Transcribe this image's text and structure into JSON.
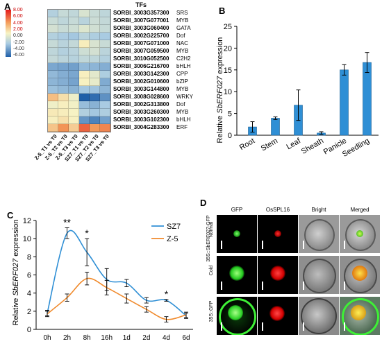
{
  "panels": {
    "A": "A",
    "B": "B",
    "C": "C",
    "D": "D"
  },
  "heatmap": {
    "tfs_header": "TFs",
    "scale_ticks": [
      "8.00",
      "6.00",
      "4.00",
      "2.00",
      "0.00",
      "-2.00",
      "-4.00",
      "-6.00"
    ],
    "columns": [
      "Z-5_T1 vs T0",
      "Z-5_T2 vs T0",
      "Z-5_T3 vs T0",
      "SZ7_T1 vs T0",
      "SZ7_T2 vs T0",
      "SZ7_T3 vs T0"
    ],
    "rows": [
      {
        "gene": "SORBI_3003G357300",
        "tf": "SRS",
        "values": [
          -2.6,
          -1.9,
          -2.1,
          -1.2,
          -1.8,
          -2.2
        ]
      },
      {
        "gene": "SORBI_3007G077001",
        "tf": "MYB",
        "values": [
          -1.8,
          -2.2,
          -1.9,
          -2.4,
          -1.7,
          -2.0
        ]
      },
      {
        "gene": "SORBI_3003G060400",
        "tf": "GATA",
        "values": [
          -1.4,
          -1.8,
          -1.6,
          -1.0,
          -1.5,
          -1.9
        ]
      },
      {
        "gene": "SORBI_3002G225700",
        "tf": "Dof",
        "values": [
          -2.6,
          -2.9,
          -3.1,
          -2.4,
          -2.8,
          -3.0
        ]
      },
      {
        "gene": "SORBI_3007G071000",
        "tf": "NAC",
        "values": [
          -1.9,
          -2.4,
          -2.0,
          0.3,
          -1.2,
          -1.8
        ]
      },
      {
        "gene": "SORBI_3007G059500",
        "tf": "MYB",
        "values": [
          -2.2,
          -2.6,
          -2.4,
          -1.6,
          -1.4,
          -2.3
        ]
      },
      {
        "gene": "SORBI_3010G052500",
        "tf": "C2H2",
        "values": [
          -2.0,
          -2.3,
          -2.5,
          -2.1,
          -2.2,
          -2.6
        ]
      },
      {
        "gene": "SORBI_3006G216700",
        "tf": "bHLH",
        "values": [
          -4.0,
          -4.1,
          -4.2,
          -3.5,
          -3.6,
          -3.8
        ]
      },
      {
        "gene": "SORBI_3003G142300",
        "tf": "CPP",
        "values": [
          -3.5,
          -3.8,
          -4.0,
          0.2,
          -0.8,
          -2.8
        ]
      },
      {
        "gene": "SORBI_3002G010600",
        "tf": "bZIP",
        "values": [
          -3.6,
          -3.8,
          -4.1,
          0.1,
          -0.6,
          -3.9
        ]
      },
      {
        "gene": "SORBI_3003G144800",
        "tf": "MYB",
        "values": [
          -3.3,
          -3.5,
          -3.7,
          -3.1,
          -3.2,
          -3.6
        ]
      },
      {
        "gene": "SORBI_3008G028600",
        "tf": "WRKY",
        "values": [
          2.6,
          1.0,
          -0.4,
          -6.0,
          -5.6,
          -4.6
        ]
      },
      {
        "gene": "SORBI_3002G313800",
        "tf": "Dof",
        "values": [
          -0.3,
          0.2,
          -0.2,
          -3.4,
          -3.7,
          -3.0
        ]
      },
      {
        "gene": "SORBI_3003G260300",
        "tf": "MYB",
        "values": [
          0.5,
          0.3,
          0.0,
          -2.7,
          -3.1,
          -2.8
        ]
      },
      {
        "gene": "SORBI_3003G102300",
        "tf": "bHLH",
        "values": [
          0.2,
          0.9,
          0.1,
          -4.5,
          -5.0,
          -4.2
        ]
      },
      {
        "gene": "SORBI_3004G283300",
        "tf": "ERF",
        "values": [
          2.3,
          4.4,
          1.9,
          5.8,
          4.2,
          4.8
        ]
      }
    ]
  },
  "chart_data": [
    {
      "type": "bar",
      "ylabel_pre": "Relative ",
      "ylabel_gene": "SbERF027",
      "ylabel_post": " expression",
      "categories": [
        "Root",
        "Stem",
        "Leaf",
        "Sheath",
        "Panicle",
        "Seedling"
      ],
      "values": [
        1.9,
        3.9,
        6.9,
        0.5,
        15.0,
        16.7
      ],
      "errors": [
        1.2,
        0.3,
        3.5,
        0.3,
        1.2,
        2.3
      ],
      "ylim": [
        0,
        25
      ],
      "yticks": [
        0,
        5,
        10,
        15,
        20,
        25
      ],
      "bar_color": "#2f8fd5"
    },
    {
      "type": "line",
      "ylabel_pre": "Relative ",
      "ylabel_gene": "SbERF027",
      "ylabel_post": " expression",
      "categories": [
        "0h",
        "2h",
        "8h",
        "16h",
        "1d",
        "2d",
        "4d",
        "6d"
      ],
      "ylim": [
        0,
        12
      ],
      "yticks": [
        0,
        2,
        4,
        6,
        8,
        10,
        12
      ],
      "series": [
        {
          "name": "SZ7",
          "color": "#2f8fd5",
          "values": [
            1.8,
            10.6,
            8.5,
            5.5,
            5.1,
            3.2,
            3.2,
            1.5
          ],
          "errors": [
            0.3,
            0.6,
            1.5,
            1.2,
            0.4,
            0.3,
            0.1,
            0.3
          ]
        },
        {
          "name": "Z-5",
          "color": "#f08a2c",
          "values": [
            1.7,
            3.5,
            5.6,
            4.6,
            3.4,
            2.2,
            1.1,
            1.6
          ],
          "errors": [
            0.3,
            0.4,
            0.7,
            0.8,
            0.5,
            0.3,
            0.3,
            0.3
          ]
        }
      ],
      "annotations": [
        {
          "x": "2h",
          "text": "**"
        },
        {
          "x": "8h",
          "text": "*"
        },
        {
          "x": "4d",
          "text": "*"
        }
      ]
    }
  ],
  "microscopy": {
    "columns": [
      "GFP",
      "OsSPL16",
      "Bright",
      "Merged"
    ],
    "construct_1": "35S::SbERF027-GFP",
    "row_labels": [
      "Normal",
      "Cold",
      "35S::GFP"
    ]
  }
}
